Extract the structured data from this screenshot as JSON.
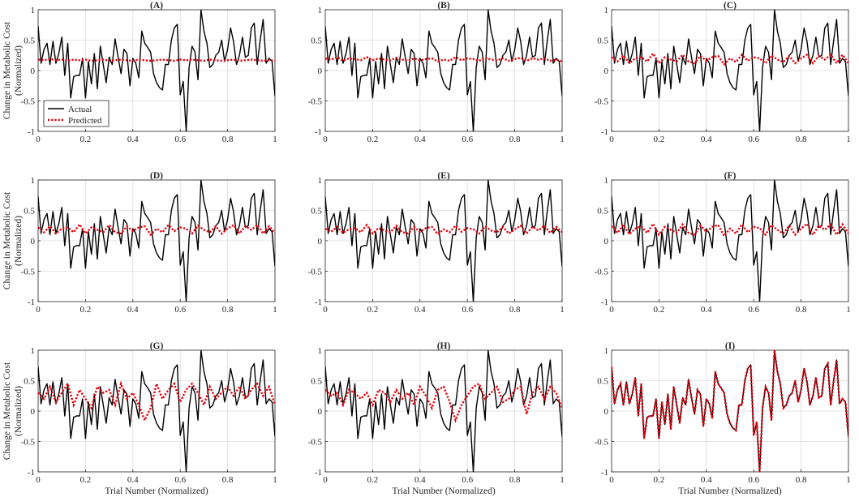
{
  "chart_data": {
    "type": "line",
    "layout": "3x3 grid of subplots",
    "xlabel": "Trial Number (Normalized)",
    "ylabel_line1": "Change in Metabolic Cost",
    "ylabel_line2": "(Normalized)",
    "xlim": [
      0,
      1
    ],
    "ylim": [
      -1,
      1
    ],
    "xticks": [
      0,
      0.2,
      0.4,
      0.6,
      0.8,
      1
    ],
    "xtick_labels": [
      "0",
      "0.2",
      "0.4",
      "0.6",
      "0.8",
      "1"
    ],
    "yticks": [
      -1,
      -0.5,
      0,
      0.5,
      1
    ],
    "ytick_labels": [
      "-1",
      "-0.5",
      "0",
      "0.5",
      "1"
    ],
    "grid": true,
    "legend": {
      "placement": "lower-left (panel A)",
      "entries": [
        "Actual",
        "Predicted"
      ]
    },
    "colors": {
      "actual": "#000000",
      "predicted": "#e8000b",
      "grid": "#dcdcdc",
      "axis": "#262626"
    },
    "actual_series": {
      "name": "Actual",
      "style": "solid black",
      "x": [
        0,
        0.0125,
        0.025,
        0.0375,
        0.05,
        0.0625,
        0.075,
        0.0875,
        0.1,
        0.1125,
        0.125,
        0.1375,
        0.15,
        0.1625,
        0.175,
        0.1875,
        0.2,
        0.2125,
        0.225,
        0.2375,
        0.25,
        0.2625,
        0.275,
        0.2875,
        0.3,
        0.3125,
        0.325,
        0.3375,
        0.35,
        0.3625,
        0.375,
        0.3875,
        0.4,
        0.4125,
        0.425,
        0.4375,
        0.45,
        0.4625,
        0.475,
        0.4875,
        0.5,
        0.5125,
        0.525,
        0.5375,
        0.55,
        0.5625,
        0.575,
        0.5875,
        0.6,
        0.6125,
        0.625,
        0.6375,
        0.65,
        0.6625,
        0.675,
        0.6875,
        0.7,
        0.7125,
        0.725,
        0.7375,
        0.75,
        0.7625,
        0.775,
        0.7875,
        0.8,
        0.8125,
        0.825,
        0.8375,
        0.85,
        0.8625,
        0.875,
        0.8875,
        0.9,
        0.9125,
        0.925,
        0.9375,
        0.95,
        0.9625,
        0.975,
        0.9875,
        1
      ],
      "y": [
        0.73,
        0.12,
        0.35,
        0.45,
        0.1,
        0.48,
        0.12,
        0.28,
        0.55,
        -0.08,
        0.45,
        -0.45,
        -0.1,
        -0.08,
        -0.08,
        0.2,
        -0.45,
        0.15,
        -0.22,
        0.28,
        -0.3,
        0.4,
        0.1,
        -0.2,
        0.22,
        0.1,
        0.52,
        0.22,
        -0.05,
        0.35,
        0.28,
        -0.25,
        0.2,
        0.12,
        -0.12,
        0.65,
        0.45,
        0.38,
        0.3,
        -0.05,
        -0.2,
        -0.28,
        -0.32,
        0.1,
        0.1,
        0.5,
        0.7,
        0.76,
        -0.4,
        -0.18,
        -1,
        0.05,
        0.4,
        0.3,
        -0.15,
        1,
        0.65,
        0.45,
        0.05,
        0.1,
        0.25,
        0.3,
        0.5,
        0.15,
        0.35,
        0.7,
        0.48,
        0.1,
        0.25,
        0.55,
        0.22,
        0.25,
        0.7,
        0.78,
        0.1,
        0.5,
        0.84,
        0.12,
        0.2,
        0.15,
        -0.42
      ]
    },
    "predicted_x": [
      0,
      0.025,
      0.05,
      0.075,
      0.1,
      0.125,
      0.15,
      0.175,
      0.2,
      0.225,
      0.25,
      0.275,
      0.3,
      0.325,
      0.35,
      0.375,
      0.4,
      0.425,
      0.45,
      0.475,
      0.5,
      0.525,
      0.55,
      0.575,
      0.6,
      0.625,
      0.65,
      0.675,
      0.7,
      0.725,
      0.75,
      0.775,
      0.8,
      0.825,
      0.85,
      0.875,
      0.9,
      0.925,
      0.95,
      0.975,
      1
    ],
    "panels": [
      {
        "label": "(A)",
        "predicted": {
          "name": "Predicted",
          "y": [
            0.18,
            0.17,
            0.19,
            0.17,
            0.18,
            0.16,
            0.18,
            0.17,
            0.18,
            0.16,
            0.17,
            0.18,
            0.16,
            0.17,
            0.18,
            0.17,
            0.16,
            0.18,
            0.17,
            0.16,
            0.17,
            0.18,
            0.17,
            0.16,
            0.18,
            0.17,
            0.18,
            0.17,
            0.16,
            0.18,
            0.17,
            0.16,
            0.17,
            0.18,
            0.16,
            0.17,
            0.18,
            0.17,
            0.16,
            0.17,
            0.16
          ]
        }
      },
      {
        "label": "(B)",
        "predicted": {
          "name": "Predicted",
          "y": [
            0.2,
            0.18,
            0.22,
            0.16,
            0.2,
            0.19,
            0.17,
            0.22,
            0.17,
            0.2,
            0.18,
            0.17,
            0.21,
            0.18,
            0.16,
            0.2,
            0.17,
            0.19,
            0.2,
            0.15,
            0.18,
            0.16,
            0.22,
            0.17,
            0.2,
            0.19,
            0.16,
            0.21,
            0.18,
            0.17,
            0.2,
            0.16,
            0.19,
            0.21,
            0.16,
            0.2,
            0.18,
            0.2,
            0.16,
            0.18,
            0.15
          ]
        }
      },
      {
        "label": "(C)",
        "predicted": {
          "name": "Predicted",
          "y": [
            0.22,
            0.15,
            0.25,
            0.12,
            0.2,
            0.22,
            0.15,
            0.28,
            0.12,
            0.22,
            0.18,
            0.15,
            0.26,
            0.15,
            0.12,
            0.24,
            0.16,
            0.22,
            0.24,
            0.1,
            0.2,
            0.14,
            0.26,
            0.16,
            0.22,
            0.2,
            0.12,
            0.25,
            0.18,
            0.14,
            0.24,
            0.12,
            0.2,
            0.26,
            0.12,
            0.24,
            0.18,
            0.26,
            0.12,
            0.26,
            0.12
          ]
        }
      },
      {
        "label": "(D)",
        "predicted": {
          "name": "Predicted",
          "y": [
            0.22,
            0.14,
            0.24,
            0.12,
            0.2,
            0.22,
            0.14,
            0.27,
            0.12,
            0.22,
            0.18,
            0.14,
            0.26,
            0.14,
            0.12,
            0.24,
            0.16,
            0.22,
            0.24,
            0.1,
            0.2,
            0.14,
            0.26,
            0.16,
            0.22,
            0.2,
            0.12,
            0.25,
            0.18,
            0.14,
            0.24,
            0.12,
            0.2,
            0.26,
            0.12,
            0.24,
            0.18,
            0.26,
            0.12,
            0.24,
            0.13
          ]
        }
      },
      {
        "label": "(E)",
        "predicted": {
          "name": "Predicted",
          "y": [
            0.2,
            0.15,
            0.23,
            0.13,
            0.19,
            0.21,
            0.14,
            0.26,
            0.12,
            0.21,
            0.17,
            0.14,
            0.25,
            0.14,
            0.12,
            0.23,
            0.15,
            0.21,
            0.23,
            0.11,
            0.19,
            0.14,
            0.25,
            0.15,
            0.21,
            0.19,
            0.12,
            0.24,
            0.17,
            0.14,
            0.23,
            0.12,
            0.19,
            0.25,
            0.12,
            0.23,
            0.17,
            0.25,
            0.13,
            0.23,
            0.14
          ]
        }
      },
      {
        "label": "(F)",
        "predicted": {
          "name": "Predicted",
          "y": [
            0.24,
            0.13,
            0.26,
            0.11,
            0.2,
            0.24,
            0.13,
            0.28,
            0.1,
            0.23,
            0.18,
            0.13,
            0.27,
            0.13,
            0.1,
            0.25,
            0.15,
            0.23,
            0.26,
            0.08,
            0.2,
            0.12,
            0.27,
            0.14,
            0.23,
            0.21,
            0.1,
            0.26,
            0.18,
            0.12,
            0.25,
            0.1,
            0.2,
            0.28,
            0.1,
            0.25,
            0.18,
            0.27,
            0.1,
            0.27,
            0.12
          ]
        }
      },
      {
        "label": "(G)",
        "predicted": {
          "name": "Predicted",
          "y": [
            0.3,
            0.2,
            0.4,
            0.15,
            0.3,
            0.45,
            0.1,
            0.35,
            0.2,
            0.05,
            0.4,
            0.3,
            0.35,
            0.1,
            0.45,
            0.2,
            0.3,
            0.1,
            -0.15,
            0.05,
            0.45,
            0.2,
            0.35,
            0.45,
            0.15,
            0.35,
            0.45,
            0.3,
            0.1,
            0.4,
            0.2,
            0.3,
            0.4,
            0.25,
            0.4,
            0.2,
            0.35,
            0.45,
            0.25,
            0.4,
            0.1
          ]
        }
      },
      {
        "label": "(H)",
        "predicted": {
          "name": "Predicted",
          "y": [
            0.35,
            0.25,
            0.3,
            0.1,
            0.35,
            0.3,
            0.2,
            0.3,
            0.1,
            0.35,
            0.3,
            0.15,
            0.35,
            0.2,
            0.3,
            0.1,
            0.4,
            0.25,
            0.05,
            0.35,
            0.4,
            0.15,
            -0.15,
            0.1,
            0.25,
            0.4,
            0.45,
            0.2,
            0.3,
            0.4,
            0.15,
            0.2,
            0.35,
            0.4,
            -0.05,
            0.3,
            0.4,
            0.2,
            0.4,
            0.3,
            0.05
          ]
        }
      },
      {
        "label": "(I)",
        "predicted": {
          "name": "Predicted",
          "y": "same as Actual (near-perfect fit)"
        }
      }
    ]
  }
}
